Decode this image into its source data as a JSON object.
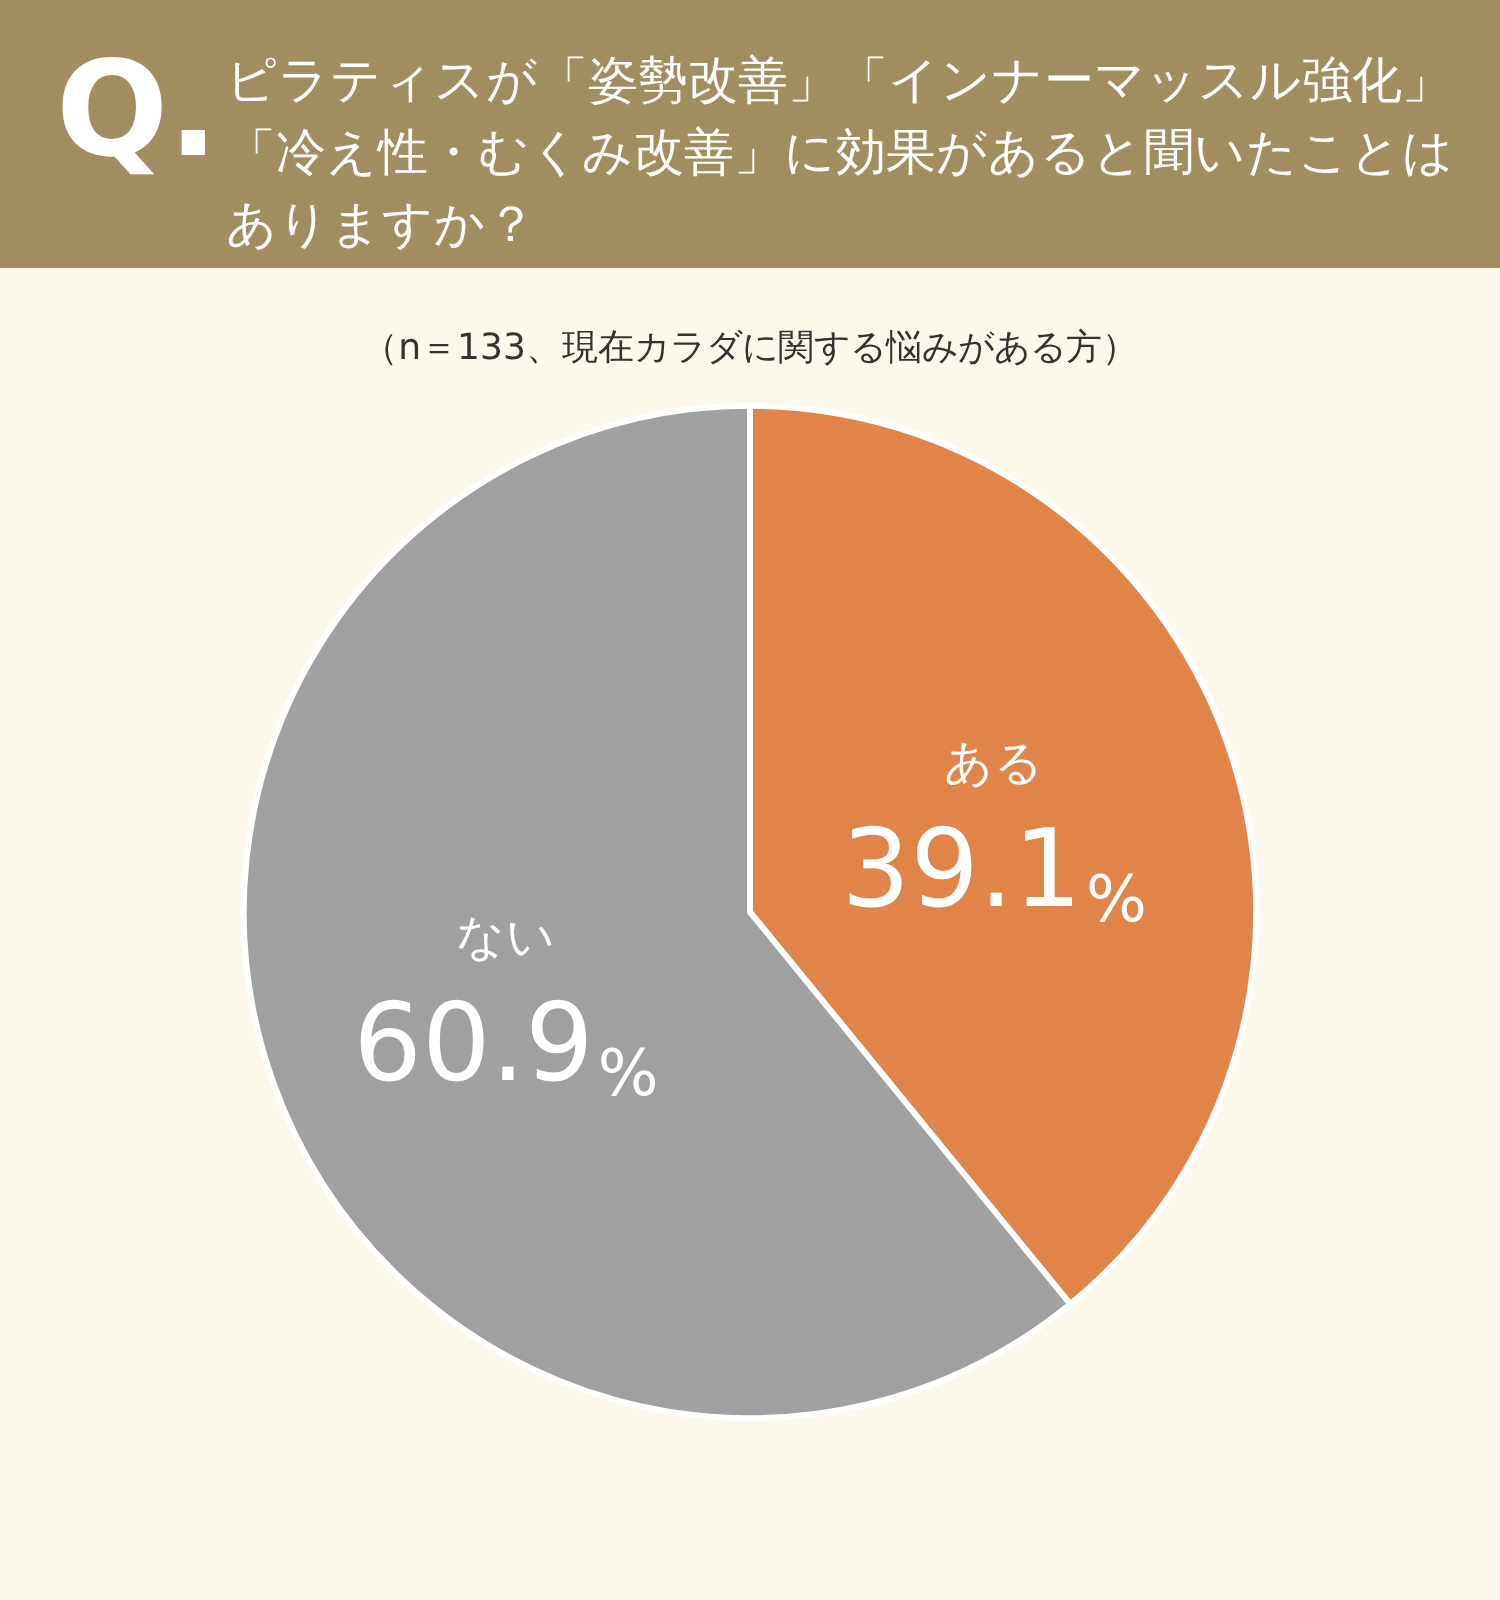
{
  "chart_data": {
    "type": "pie",
    "title": "ピラティスが「姿勢改善」「インナーマッスル強化」「冷え性・むくみ改善」に効果があると聞いたことはありますか？",
    "subtitle": "（n＝133、現在カラダに関する悩みがある方）",
    "annotations": [
      "Q."
    ],
    "categories": [
      "ある",
      "ない"
    ],
    "values": [
      39.1,
      60.9
    ],
    "colors": [
      "#e0844a",
      "#a0a0a0"
    ],
    "value_labels": [
      "39.1%",
      "60.9%"
    ]
  }
}
